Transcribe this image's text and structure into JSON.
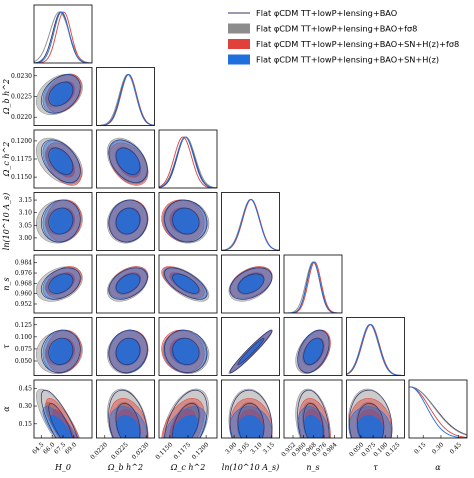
{
  "chart_data": {
    "type": "corner",
    "parameters": [
      "H0",
      "Ωbh2",
      "Ωch2",
      "ln(10^10 As)",
      "ns",
      "τ",
      "α"
    ],
    "axis_labels": [
      "H_0",
      "Ω_b h^2",
      "Ω_c h^2",
      "ln(10^10 A_s)",
      "n_s",
      "τ",
      "α"
    ],
    "row_axis_labels": [
      "",
      "Ω_b h^2",
      "Ω_c h^2",
      "ln(10^10 A_s)",
      "n_s",
      "τ",
      "α"
    ],
    "ranges": [
      [
        63.5,
        71.5
      ],
      [
        0.0218,
        0.0232
      ],
      [
        0.1135,
        0.1215
      ],
      [
        2.95,
        3.18
      ],
      [
        0.945,
        0.99
      ],
      [
        0.02,
        0.14
      ],
      [
        0.03,
        0.52
      ]
    ],
    "ticks": [
      [
        "64.5",
        "66.0",
        "67.5",
        "69.0"
      ],
      [
        "0.0220",
        "0.0225",
        "0.0230"
      ],
      [
        "0.1150",
        "0.1175",
        "0.1200"
      ],
      [
        "3.00",
        "3.05",
        "3.10",
        "3.15"
      ],
      [
        "0.952",
        "0.960",
        "0.968",
        "0.976",
        "0.984"
      ],
      [
        "0.050",
        "0.075",
        "0.100",
        "0.125"
      ],
      [
        "0.15",
        "0.30",
        "0.45"
      ]
    ],
    "tick_values": [
      [
        64.5,
        66.0,
        67.5,
        69.0
      ],
      [
        0.022,
        0.0225,
        0.023
      ],
      [
        0.115,
        0.1175,
        0.12
      ],
      [
        3.0,
        3.05,
        3.1,
        3.15
      ],
      [
        0.952,
        0.96,
        0.968,
        0.976,
        0.984
      ],
      [
        0.05,
        0.075,
        0.1,
        0.125
      ],
      [
        0.15,
        0.3,
        0.45
      ]
    ],
    "legend": {
      "placement": "top-right",
      "entries": [
        {
          "label": "Flat φCDM TT+lowP+lensing+BAO",
          "style": "line",
          "color": "#333366"
        },
        {
          "label": "Flat φCDM TT+lowP+lensing+BAO+fσ8",
          "style": "fill",
          "color": "#8c8c8c"
        },
        {
          "label": "Flat φCDM TT+lowP+lensing+BAO+SN+H(z)+fσ8",
          "style": "fill",
          "color": "#e0413a"
        },
        {
          "label": "Flat φCDM TT+lowP+lensing+BAO+SN+H(z)",
          "style": "fill",
          "color": "#1f6fdc"
        }
      ]
    },
    "series": [
      {
        "name": "Flat φCDM TT+lowP+lensing+BAO+fσ8",
        "color": "#8c8c8c",
        "mean": [
          67.0,
          0.02255,
          0.1172,
          3.065,
          0.9675,
          0.068,
          0.15
        ],
        "sigma": [
          1.3,
          0.0002,
          0.0013,
          0.035,
          0.0055,
          0.018,
          0.12
        ],
        "alpha_max": 0.47
      },
      {
        "name": "Flat φCDM TT+lowP+lensing+BAO+SN+H(z)+fσ8",
        "color": "#e0413a",
        "mean": [
          67.6,
          0.02258,
          0.1168,
          3.068,
          0.9688,
          0.07,
          0.12
        ],
        "sigma": [
          1.0,
          0.00019,
          0.0012,
          0.034,
          0.005,
          0.018,
          0.1
        ],
        "alpha_max": 0.38
      },
      {
        "name": "Flat φCDM TT+lowP+lensing+BAO+SN+H(z)",
        "color": "#1f6fdc",
        "mean": [
          67.3,
          0.02257,
          0.1171,
          3.066,
          0.968,
          0.069,
          0.1
        ],
        "sigma": [
          1.05,
          0.00019,
          0.0012,
          0.034,
          0.005,
          0.018,
          0.08
        ],
        "alpha_max": 0.33
      },
      {
        "name": "Flat φCDM TT+lowP+lensing+BAO",
        "color": "#333366",
        "mean": [
          67.2,
          0.02256,
          0.1172,
          3.067,
          0.9678,
          0.07,
          0.14
        ],
        "sigma": [
          1.1,
          0.00019,
          0.0012,
          0.034,
          0.005,
          0.018,
          0.12
        ],
        "alpha_max": 0.48
      }
    ],
    "correlation": [
      [
        1,
        0.35,
        -0.45,
        0.1,
        0.35,
        0.1,
        -0.8
      ],
      [
        0.35,
        1,
        -0.4,
        0.1,
        0.4,
        0.1,
        -0.3
      ],
      [
        -0.45,
        -0.4,
        1,
        -0.1,
        -0.65,
        -0.1,
        0.45
      ],
      [
        0.1,
        0.1,
        -0.1,
        1,
        0.4,
        0.97,
        -0.1
      ],
      [
        0.35,
        0.4,
        -0.65,
        0.4,
        1,
        0.4,
        -0.3
      ],
      [
        0.1,
        0.1,
        -0.1,
        0.97,
        0.4,
        1,
        -0.1
      ],
      [
        -0.8,
        -0.3,
        0.45,
        -0.1,
        -0.3,
        -0.1,
        1
      ]
    ],
    "grid": false
  }
}
